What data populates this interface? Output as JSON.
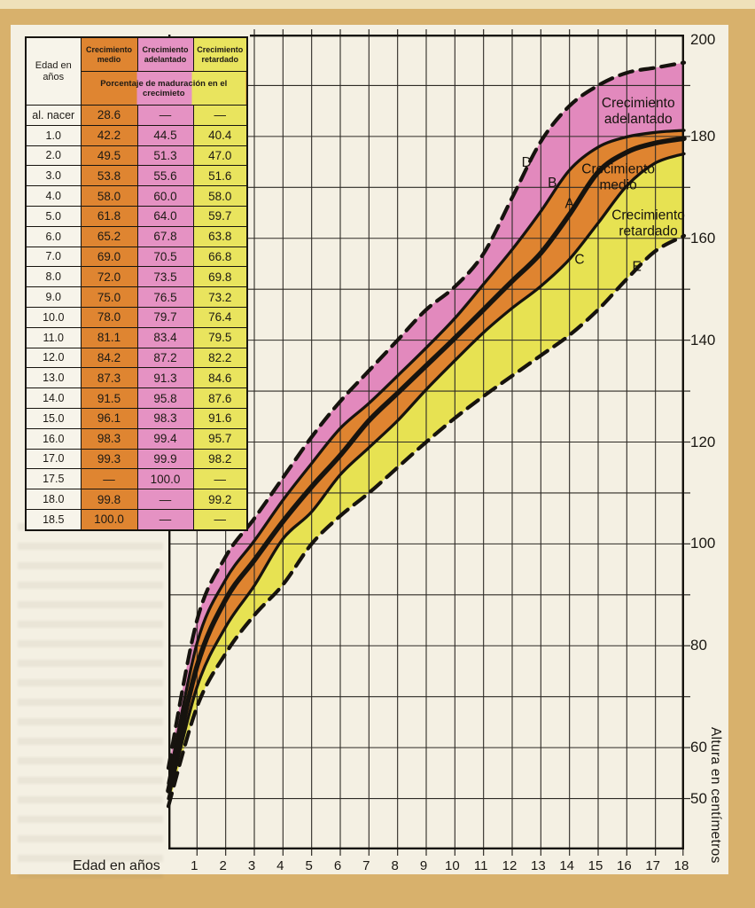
{
  "table": {
    "col_headers": [
      "Edad en años",
      "Crecimiento medio",
      "Crecimiento adelantado",
      "Crecimiento retardado"
    ],
    "subheader": "Porcentaje de maduración en el crecimieto",
    "rows": [
      [
        "al. nacer",
        "28.6",
        "—",
        "—"
      ],
      [
        "1.0",
        "42.2",
        "44.5",
        "40.4"
      ],
      [
        "2.0",
        "49.5",
        "51.3",
        "47.0"
      ],
      [
        "3.0",
        "53.8",
        "55.6",
        "51.6"
      ],
      [
        "4.0",
        "58.0",
        "60.0",
        "58.0"
      ],
      [
        "5.0",
        "61.8",
        "64.0",
        "59.7"
      ],
      [
        "6.0",
        "65.2",
        "67.8",
        "63.8"
      ],
      [
        "7.0",
        "69.0",
        "70.5",
        "66.8"
      ],
      [
        "8.0",
        "72.0",
        "73.5",
        "69.8"
      ],
      [
        "9.0",
        "75.0",
        "76.5",
        "73.2"
      ],
      [
        "10.0",
        "78.0",
        "79.7",
        "76.4"
      ],
      [
        "11.0",
        "81.1",
        "83.4",
        "79.5"
      ],
      [
        "12.0",
        "84.2",
        "87.2",
        "82.2"
      ],
      [
        "13.0",
        "87.3",
        "91.3",
        "84.6"
      ],
      [
        "14.0",
        "91.5",
        "95.8",
        "87.6"
      ],
      [
        "15.0",
        "96.1",
        "98.3",
        "91.6"
      ],
      [
        "16.0",
        "98.3",
        "99.4",
        "95.7"
      ],
      [
        "17.0",
        "99.3",
        "99.9",
        "98.2"
      ],
      [
        "17.5",
        "—",
        "100.0",
        "—"
      ],
      [
        "18.0",
        "99.8",
        "—",
        "99.2"
      ],
      [
        "18.5",
        "100.0",
        "—",
        "—"
      ]
    ]
  },
  "chart_data": {
    "type": "line",
    "title": "",
    "xlabel": "Edad en años",
    "ylabel": "Altura en centímetros",
    "xlim": [
      0,
      18
    ],
    "ylim": [
      40,
      200
    ],
    "grid": "on",
    "x_ticks": [
      "1",
      "2",
      "3",
      "4",
      "5",
      "6",
      "7",
      "8",
      "9",
      "10",
      "11",
      "12",
      "13",
      "14",
      "15",
      "16",
      "17",
      "18"
    ],
    "y_ticks": [
      200,
      180,
      160,
      140,
      120,
      100,
      80,
      60,
      50
    ],
    "y_grid_step": 10,
    "series": [
      {
        "id": "D",
        "label": "D",
        "style": "dashed",
        "role": "limite-superior",
        "points": [
          [
            0,
            56
          ],
          [
            1,
            85
          ],
          [
            2,
            97.5
          ],
          [
            3,
            105
          ],
          [
            4,
            113
          ],
          [
            5,
            121
          ],
          [
            6,
            128
          ],
          [
            7,
            134
          ],
          [
            8,
            140
          ],
          [
            9,
            146
          ],
          [
            10,
            150.5
          ],
          [
            11,
            157
          ],
          [
            12,
            168
          ],
          [
            13,
            179
          ],
          [
            14,
            186
          ],
          [
            15,
            190
          ],
          [
            16,
            192.5
          ],
          [
            17,
            193.5
          ],
          [
            18,
            194.5
          ]
        ]
      },
      {
        "id": "B",
        "label": "B",
        "style": "solid",
        "role": "crecimiento-adelantado",
        "points": [
          [
            0,
            53
          ],
          [
            1,
            80.5
          ],
          [
            2,
            93
          ],
          [
            3,
            100.6
          ],
          [
            4,
            108.6
          ],
          [
            5,
            115.8
          ],
          [
            6,
            122.7
          ],
          [
            7,
            127.6
          ],
          [
            8,
            133
          ],
          [
            9,
            138.5
          ],
          [
            10,
            144.3
          ],
          [
            11,
            151
          ],
          [
            12,
            157.8
          ],
          [
            13,
            165.3
          ],
          [
            14,
            173.4
          ],
          [
            15,
            177.9
          ],
          [
            16,
            179.9
          ],
          [
            17,
            180.8
          ],
          [
            18,
            181.2
          ]
        ]
      },
      {
        "id": "A",
        "label": "A",
        "style": "solid-thick",
        "role": "crecimiento-medio",
        "points": [
          [
            0,
            51.5
          ],
          [
            1,
            76
          ],
          [
            2,
            89.1
          ],
          [
            3,
            96.8
          ],
          [
            4,
            104.4
          ],
          [
            5,
            111.2
          ],
          [
            6,
            117.4
          ],
          [
            7,
            124.2
          ],
          [
            8,
            129.6
          ],
          [
            9,
            135
          ],
          [
            10,
            140.4
          ],
          [
            11,
            146
          ],
          [
            12,
            151.6
          ],
          [
            13,
            157.1
          ],
          [
            14,
            164.7
          ],
          [
            15,
            173
          ],
          [
            16,
            176.9
          ],
          [
            17,
            178.7
          ],
          [
            18,
            179.6
          ]
        ]
      },
      {
        "id": "C",
        "label": "C",
        "style": "solid",
        "role": "crecimiento-retardado",
        "points": [
          [
            0,
            50
          ],
          [
            1,
            71.9
          ],
          [
            2,
            83.7
          ],
          [
            3,
            91.8
          ],
          [
            4,
            101
          ],
          [
            5,
            106.3
          ],
          [
            6,
            113.6
          ],
          [
            7,
            118.9
          ],
          [
            8,
            124.2
          ],
          [
            9,
            130.3
          ],
          [
            10,
            136
          ],
          [
            11,
            141.5
          ],
          [
            12,
            146.3
          ],
          [
            13,
            150.6
          ],
          [
            14,
            155.9
          ],
          [
            15,
            163
          ],
          [
            16,
            170.3
          ],
          [
            17,
            174.8
          ],
          [
            18,
            176.6
          ]
        ]
      },
      {
        "id": "E",
        "label": "E",
        "style": "dashed",
        "role": "limite-inferior",
        "points": [
          [
            0,
            48.5
          ],
          [
            1,
            68
          ],
          [
            2,
            78.5
          ],
          [
            3,
            86
          ],
          [
            4,
            92
          ],
          [
            5,
            100
          ],
          [
            6,
            105.5
          ],
          [
            7,
            110
          ],
          [
            8,
            115
          ],
          [
            9,
            120
          ],
          [
            10,
            124.7
          ],
          [
            11,
            129
          ],
          [
            12,
            133
          ],
          [
            13,
            137
          ],
          [
            14,
            141
          ],
          [
            15,
            146
          ],
          [
            16,
            152
          ],
          [
            17,
            157.5
          ],
          [
            18,
            160.5
          ]
        ]
      }
    ],
    "bands": [
      {
        "id": "adelantado",
        "label": "Crecimiento adelantado",
        "between": [
          "D",
          "B"
        ],
        "color": "#e289bd",
        "label_pos": [
          16.4,
          184.5
        ]
      },
      {
        "id": "medio",
        "label": "Crecimiento medio",
        "between": [
          "B",
          "C"
        ],
        "color": "#df8430",
        "label_pos": [
          15.7,
          171.5
        ]
      },
      {
        "id": "retardado",
        "label": "Crecimiento retardado",
        "between": [
          "C",
          "E"
        ],
        "color": "#e7e252",
        "label_pos": [
          16.75,
          162.5
        ]
      }
    ],
    "curve_letters": [
      {
        "text": "D",
        "age": 12.5,
        "cm": 174.9
      },
      {
        "text": "B",
        "age": 13.4,
        "cm": 170.9
      },
      {
        "text": "A",
        "age": 14.0,
        "cm": 166.8
      },
      {
        "text": "C",
        "age": 14.35,
        "cm": 155.9
      },
      {
        "text": "E",
        "age": 16.35,
        "cm": 154.5
      }
    ]
  },
  "colors": {
    "pink": "#e592c3",
    "orange": "#df8531",
    "yellow": "#e9e45e",
    "band_pink": "#e289bd",
    "band_orange": "#df8430",
    "band_yellow": "#e7e252",
    "paper": "#f4f0e3",
    "tan": "#d8b16c",
    "ink": "#16130e"
  }
}
